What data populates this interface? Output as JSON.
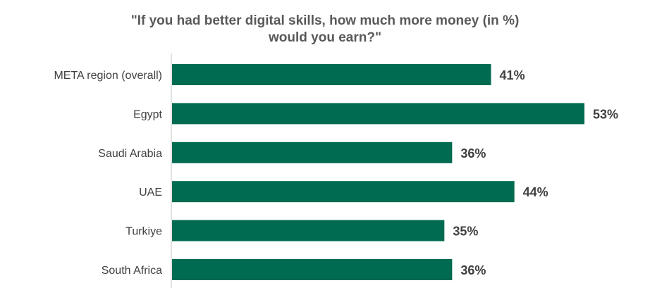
{
  "chart_data": {
    "type": "bar",
    "orientation": "horizontal",
    "title_lines": [
      "\"If you had better digital skills, how much more money (in %)",
      "would you earn?\""
    ],
    "categories": [
      "META region (overall)",
      "Egypt",
      "Saudi Arabia",
      "UAE",
      "Turkiye",
      "South Africa"
    ],
    "values": [
      41,
      53,
      36,
      44,
      35,
      36
    ],
    "value_labels": [
      "41%",
      "53%",
      "36%",
      "44%",
      "35%",
      "36%"
    ],
    "xlim": [
      0,
      53
    ],
    "grid": false,
    "legend": "none",
    "bar_color": "#006B50",
    "axis_color": "#D9D9D9",
    "text_color": "#404040",
    "title_color": "#595959"
  }
}
